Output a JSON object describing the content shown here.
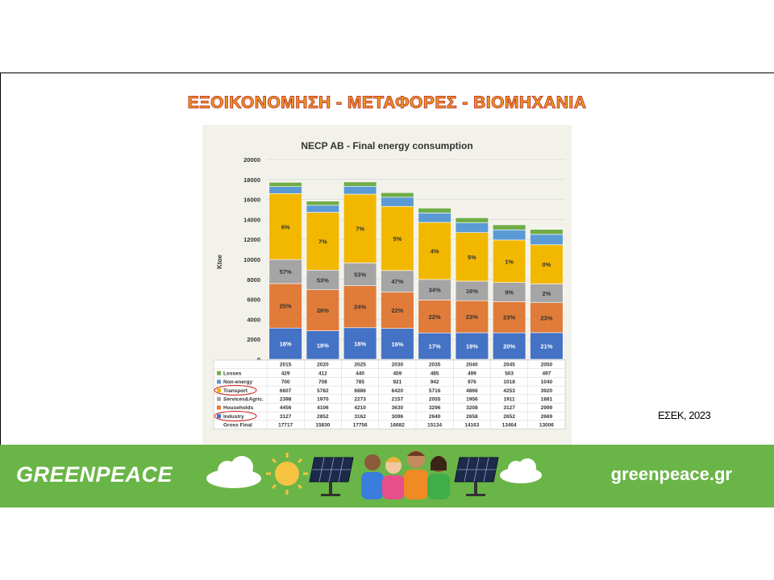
{
  "slide": {
    "title": "ΕΞΟΙΚΟΝΟΜΗΣΗ - ΜΕΤΑΦΟΡΕΣ - ΒΙΟΜΗΧΑΝΙΑ",
    "source_note": "ΕΣΕΚ, 2023"
  },
  "banner": {
    "logo_text": "GREENPEACE",
    "url_text": "greenpeace.gr",
    "background_color": "#6ab547"
  },
  "chart_data": {
    "type": "bar",
    "stacked": true,
    "title": "NECP AB - Final energy consumption",
    "ylabel": "Ktoe",
    "xlabel": "",
    "ylim": [
      0,
      20000
    ],
    "yticks": [
      0,
      2000,
      4000,
      6000,
      8000,
      10000,
      12000,
      14000,
      16000,
      18000,
      20000
    ],
    "grid": true,
    "categories": [
      "2015",
      "2020",
      "2025",
      "2030",
      "2035",
      "2040",
      "2045",
      "2050"
    ],
    "series": [
      {
        "name": "Industry",
        "color": "#4472c4",
        "values": [
          3127,
          2852,
          3162,
          3096,
          2640,
          2658,
          2652,
          2669
        ],
        "labels": [
          "18%",
          "18%",
          "18%",
          "19%",
          "17%",
          "19%",
          "20%",
          "21%"
        ],
        "circled": true
      },
      {
        "name": "Households",
        "color": "#e07b39",
        "values": [
          4456,
          4106,
          4210,
          3630,
          3296,
          3208,
          3127,
          2999
        ],
        "labels": [
          "25%",
          "26%",
          "24%",
          "22%",
          "22%",
          "23%",
          "23%",
          "23%"
        ]
      },
      {
        "name": "Services&Agric.",
        "color": "#a5a5a5",
        "values": [
          2398,
          1970,
          2273,
          2157,
          2055,
          1956,
          1911,
          1881
        ],
        "labels": [
          "57%",
          "53%",
          "53%",
          "47%",
          "34%",
          "16%",
          "9%",
          "2%"
        ]
      },
      {
        "name": "Transport",
        "color": "#f2b800",
        "values": [
          6607,
          5782,
          6886,
          6420,
          5716,
          4866,
          4253,
          3920
        ],
        "labels": [
          "6%",
          "7%",
          "7%",
          "5%",
          "4%",
          "5%",
          "1%",
          "0%"
        ],
        "circled": true
      },
      {
        "name": "Non-energy",
        "color": "#5b9bd5",
        "values": [
          700,
          708,
          785,
          921,
          942,
          976,
          1018,
          1040
        ]
      },
      {
        "name": "Losses",
        "color": "#70ad47",
        "values": [
          429,
          412,
          440,
          459,
          485,
          499,
          503,
          497
        ]
      }
    ],
    "table_row_order": [
      "Losses",
      "Non-energy",
      "Transport",
      "Services&Agric.",
      "Households",
      "Industry"
    ],
    "total_row": {
      "name": "Gross Final",
      "values": [
        17717,
        15830,
        17756,
        16682,
        15134,
        14163,
        13464,
        13006
      ]
    }
  }
}
